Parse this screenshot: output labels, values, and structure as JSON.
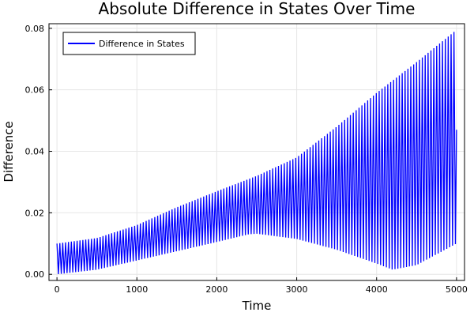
{
  "chart_data": {
    "type": "line",
    "title": "Absolute Difference in States Over Time",
    "xlabel": "Time",
    "ylabel": "Difference",
    "xlim": [
      -100,
      5100
    ],
    "ylim": [
      -0.002,
      0.0815
    ],
    "xticks": [
      0,
      1000,
      2000,
      3000,
      4000,
      5000
    ],
    "xtick_labels": [
      "0",
      "1000",
      "2000",
      "3000",
      "4000",
      "5000"
    ],
    "yticks": [
      0,
      0.02,
      0.04,
      0.06,
      0.08
    ],
    "ytick_labels": [
      "0.00",
      "0.02",
      "0.04",
      "0.06",
      "0.08"
    ],
    "grid": true,
    "legend": {
      "position": "top-left",
      "entries": [
        "Difference in States"
      ]
    },
    "series": [
      {
        "name": "Difference in States",
        "color": "#0000ff",
        "pattern": "rapid oscillation between lower and upper envelope",
        "period": 36,
        "x_range": [
          0,
          5000
        ],
        "end_value": 0.047,
        "upper_envelope": {
          "x": [
            0,
            500,
            1000,
            1500,
            2000,
            2500,
            3000,
            3500,
            4000,
            4500,
            5000
          ],
          "y": [
            0.01,
            0.0118,
            0.016,
            0.0218,
            0.027,
            0.032,
            0.038,
            0.048,
            0.059,
            0.069,
            0.0795
          ]
        },
        "lower_envelope": {
          "x": [
            0,
            500,
            1000,
            1500,
            2000,
            2400,
            2500,
            3000,
            3500,
            4000,
            4200,
            4500,
            5000
          ],
          "y": [
            0.0,
            0.0015,
            0.0045,
            0.0075,
            0.0105,
            0.013,
            0.0132,
            0.0115,
            0.008,
            0.0035,
            0.0015,
            0.003,
            0.01
          ]
        }
      }
    ]
  }
}
